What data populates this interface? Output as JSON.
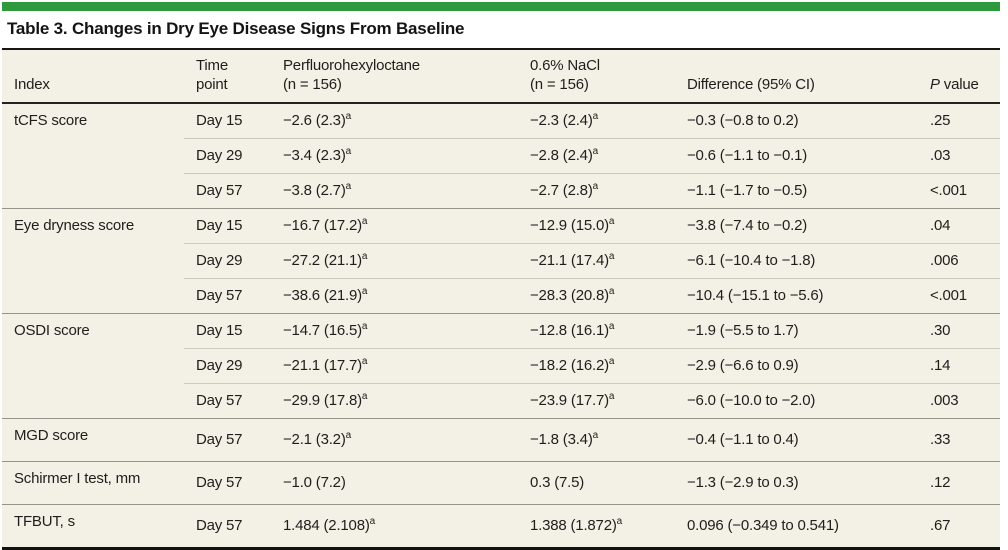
{
  "title": "Table 3. Changes in Dry Eye Disease Signs From Baseline",
  "colors": {
    "accent_green": "#2d9b3d",
    "table_background": "#f3f1e5",
    "heavy_rule": "#121212",
    "group_rule": "#96948a",
    "sub_row_rule": "#ccc9bb",
    "text": "#1f1e1c"
  },
  "table": {
    "columns": [
      {
        "lines": [
          "Index"
        ]
      },
      {
        "lines": [
          "Time",
          "point"
        ]
      },
      {
        "lines": [
          "Perfluorohexyloctane",
          "(n = 156)"
        ]
      },
      {
        "lines": [
          "0.6% NaCl",
          "(n = 156)"
        ]
      },
      {
        "lines": [
          "Difference (95% CI)"
        ]
      },
      {
        "p_italic": "P",
        "p_rest": " value"
      }
    ],
    "footnote_marker": "a",
    "groups": [
      {
        "index": "tCFS score",
        "rows": [
          {
            "time": "Day 15",
            "pfho": {
              "v": "−2.6 (2.3)",
              "sup": "a"
            },
            "nacl": {
              "v": "−2.3 (2.4)",
              "sup": "a"
            },
            "diff": "−0.3 (−0.8 to 0.2)",
            "p": ".25"
          },
          {
            "time": "Day 29",
            "pfho": {
              "v": "−3.4 (2.3)",
              "sup": "a"
            },
            "nacl": {
              "v": "−2.8 (2.4)",
              "sup": "a"
            },
            "diff": "−0.6 (−1.1 to −0.1)",
            "p": ".03"
          },
          {
            "time": "Day 57",
            "pfho": {
              "v": "−3.8 (2.7)",
              "sup": "a"
            },
            "nacl": {
              "v": "−2.7 (2.8)",
              "sup": "a"
            },
            "diff": "−1.1 (−1.7 to −0.5)",
            "p": "<.001"
          }
        ]
      },
      {
        "index": "Eye dryness score",
        "rows": [
          {
            "time": "Day 15",
            "pfho": {
              "v": "−16.7 (17.2)",
              "sup": "a"
            },
            "nacl": {
              "v": "−12.9 (15.0)",
              "sup": "a"
            },
            "diff": "−3.8 (−7.4 to −0.2)",
            "p": ".04"
          },
          {
            "time": "Day 29",
            "pfho": {
              "v": "−27.2 (21.1)",
              "sup": "a"
            },
            "nacl": {
              "v": "−21.1 (17.4)",
              "sup": "a"
            },
            "diff": "−6.1 (−10.4 to −1.8)",
            "p": ".006"
          },
          {
            "time": "Day 57",
            "pfho": {
              "v": "−38.6 (21.9)",
              "sup": "a"
            },
            "nacl": {
              "v": "−28.3 (20.8)",
              "sup": "a"
            },
            "diff": "−10.4 (−15.1 to −5.6)",
            "p": "<.001"
          }
        ]
      },
      {
        "index": "OSDI score",
        "rows": [
          {
            "time": "Day 15",
            "pfho": {
              "v": "−14.7 (16.5)",
              "sup": "a"
            },
            "nacl": {
              "v": "−12.8 (16.1)",
              "sup": "a"
            },
            "diff": "−1.9 (−5.5 to 1.7)",
            "p": ".30"
          },
          {
            "time": "Day 29",
            "pfho": {
              "v": "−21.1 (17.7)",
              "sup": "a"
            },
            "nacl": {
              "v": "−18.2 (16.2)",
              "sup": "a"
            },
            "diff": "−2.9 (−6.6 to 0.9)",
            "p": ".14"
          },
          {
            "time": "Day 57",
            "pfho": {
              "v": "−29.9 (17.8)",
              "sup": "a"
            },
            "nacl": {
              "v": "−23.9 (17.7)",
              "sup": "a"
            },
            "diff": "−6.0 (−10.0 to −2.0)",
            "p": ".003"
          }
        ]
      },
      {
        "index": "MGD score",
        "rows": [
          {
            "time": "Day 57",
            "pfho": {
              "v": "−2.1 (3.2)",
              "sup": "a"
            },
            "nacl": {
              "v": "−1.8 (3.4)",
              "sup": "a"
            },
            "diff": "−0.4 (−1.1 to 0.4)",
            "p": ".33"
          }
        ]
      },
      {
        "index": "Schirmer I test, mm",
        "rows": [
          {
            "time": "Day 57",
            "pfho": {
              "v": "−1.0 (7.2)"
            },
            "nacl": {
              "v": "0.3 (7.5)"
            },
            "diff": "−1.3 (−2.9 to 0.3)",
            "p": ".12"
          }
        ]
      },
      {
        "index": "TFBUT, s",
        "rows": [
          {
            "time": "Day 57",
            "pfho": {
              "v": "1.484 (2.108)",
              "sup": "a"
            },
            "nacl": {
              "v": "1.388 (1.872)",
              "sup": "a"
            },
            "diff": "0.096 (−0.349 to 0.541)",
            "p": ".67"
          }
        ]
      }
    ]
  }
}
